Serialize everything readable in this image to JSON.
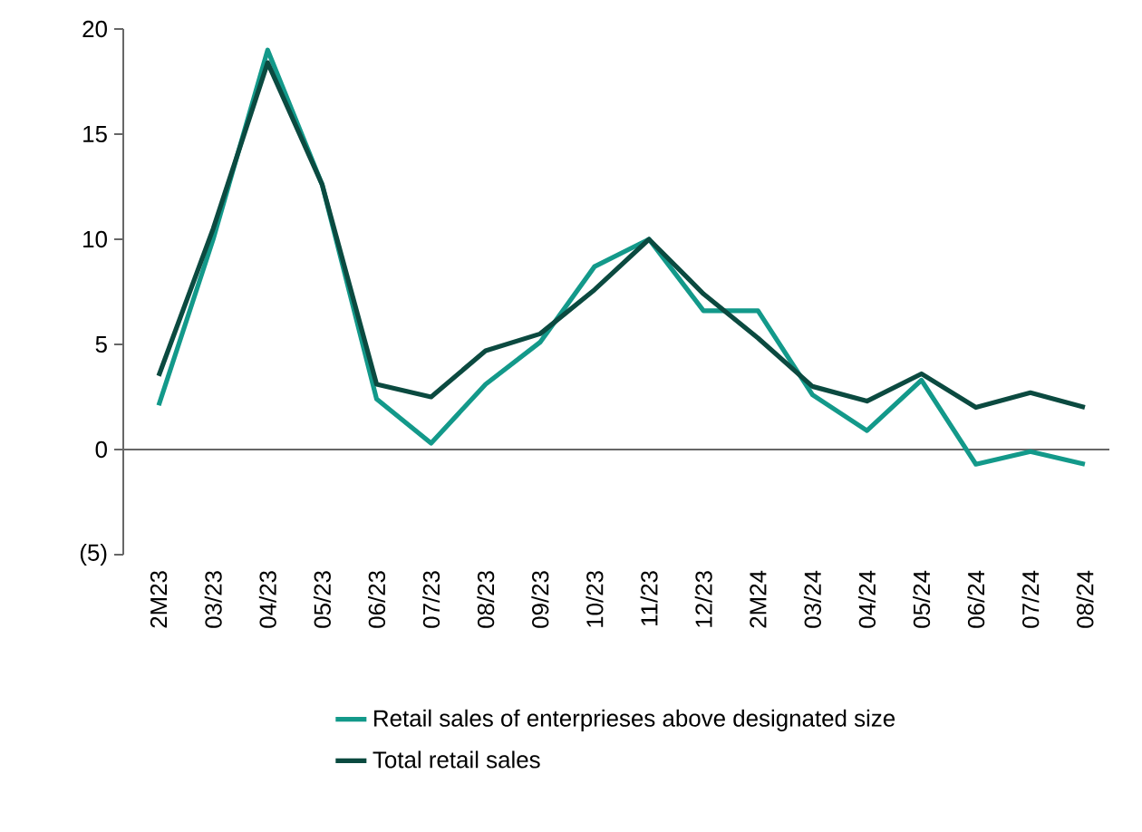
{
  "chart_data": {
    "type": "line",
    "categories": [
      "2M23",
      "03/23",
      "04/23",
      "05/23",
      "06/23",
      "07/23",
      "08/23",
      "09/23",
      "10/23",
      "11/23",
      "12/23",
      "2M24",
      "03/24",
      "04/24",
      "05/24",
      "06/24",
      "07/24",
      "08/24"
    ],
    "series": [
      {
        "name": "Retail sales of enterprieses above designated size",
        "color": "#13998a",
        "values": [
          2.1,
          10.0,
          19.0,
          12.6,
          2.4,
          0.3,
          3.1,
          5.1,
          8.7,
          10.0,
          6.6,
          6.6,
          2.6,
          0.9,
          3.3,
          -0.7,
          -0.1,
          -0.7
        ]
      },
      {
        "name": "Total retail sales",
        "color": "#0b4a40",
        "values": [
          3.5,
          10.5,
          18.4,
          12.6,
          3.1,
          2.5,
          4.7,
          5.5,
          7.6,
          10.0,
          7.4,
          5.3,
          3.0,
          2.3,
          3.6,
          2.0,
          2.7,
          2.0
        ]
      }
    ],
    "ylim": [
      -5,
      20
    ],
    "yticks": [
      {
        "value": -5,
        "label": "(5)"
      },
      0,
      5,
      10,
      15,
      20
    ],
    "legend": "bottom",
    "marker": "none",
    "line_style": "solid"
  }
}
